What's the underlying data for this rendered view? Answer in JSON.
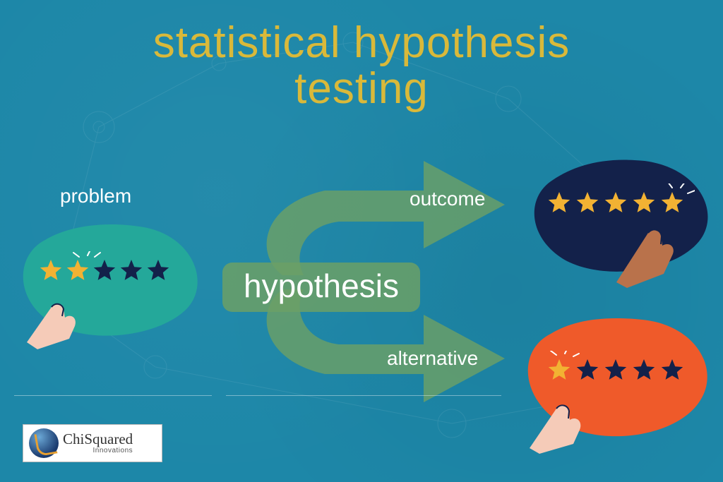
{
  "title_line1": "statistical hypothesis",
  "title_line2": "testing",
  "title_color": "#d9b93a",
  "background_color": "#1d87a8",
  "center_label": "hypothesis",
  "center_bg": "#6ba066",
  "arrow_color": "#6ba066",
  "labels": {
    "problem": "problem",
    "outcome": "outcome",
    "alternative": "alternative"
  },
  "blobs": {
    "problem": {
      "fill": "#24a89a",
      "stars_filled": 2,
      "stars_total": 5,
      "star_fill": "#f2b233",
      "star_empty": "#13214a",
      "hand_skin": "#f5cbb8"
    },
    "outcome": {
      "fill": "#13214a",
      "stars_filled": 5,
      "stars_total": 5,
      "star_fill": "#f2b233",
      "star_empty": "#13214a",
      "hand_skin": "#b9724b"
    },
    "alternative": {
      "fill": "#ef5a2a",
      "stars_filled": 1,
      "stars_total": 5,
      "star_fill": "#f2b233",
      "star_empty": "#13214a",
      "hand_skin": "#f5cbb8"
    }
  },
  "logo": {
    "main": "ChiSquared",
    "sub": "Innovations"
  }
}
